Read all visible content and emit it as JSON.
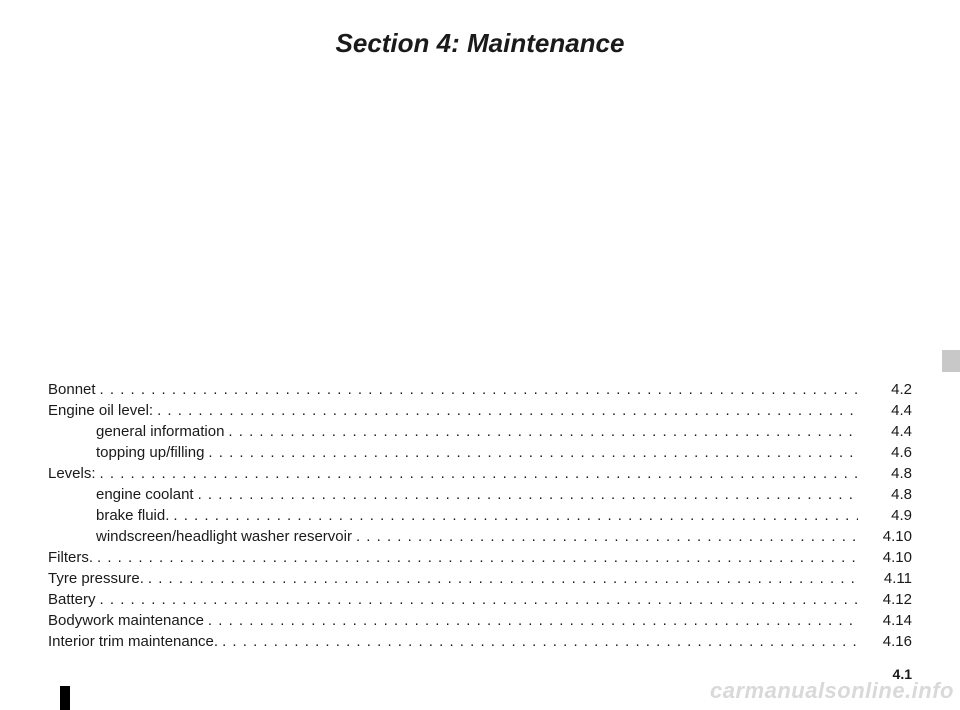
{
  "title": "Section 4: Maintenance",
  "page_number": "4.1",
  "watermark": "carmanualsonline.info",
  "colors": {
    "text": "#1a1a1a",
    "background": "#ffffff",
    "side_tab": "#c8c8c8",
    "watermark": "#d9d9d9",
    "black_tab": "#000000"
  },
  "typography": {
    "title_fontsize": 26,
    "title_style": "bold italic",
    "body_fontsize": 15,
    "pagenum_fontsize": 14
  },
  "toc": [
    {
      "label": "Bonnet",
      "page": "4.2",
      "sub": false
    },
    {
      "label": "Engine oil level:",
      "page": "4.4",
      "sub": false
    },
    {
      "label": "general information",
      "page": "4.4",
      "sub": true
    },
    {
      "label": "topping up/filling",
      "page": "4.6",
      "sub": true
    },
    {
      "label": "Levels:",
      "page": "4.8",
      "sub": false
    },
    {
      "label": "engine coolant",
      "page": "4.8",
      "sub": true
    },
    {
      "label": "brake fluid.",
      "page": "4.9",
      "sub": true
    },
    {
      "label": "windscreen/headlight washer reservoir",
      "page": "4.10",
      "sub": true
    },
    {
      "label": "Filters.",
      "page": "4.10",
      "sub": false
    },
    {
      "label": "Tyre pressure.",
      "page": "4.11",
      "sub": false
    },
    {
      "label": "Battery",
      "page": "4.12",
      "sub": false
    },
    {
      "label": "Bodywork maintenance",
      "page": "4.14",
      "sub": false
    },
    {
      "label": "Interior trim maintenance.",
      "page": "4.16",
      "sub": false
    }
  ]
}
